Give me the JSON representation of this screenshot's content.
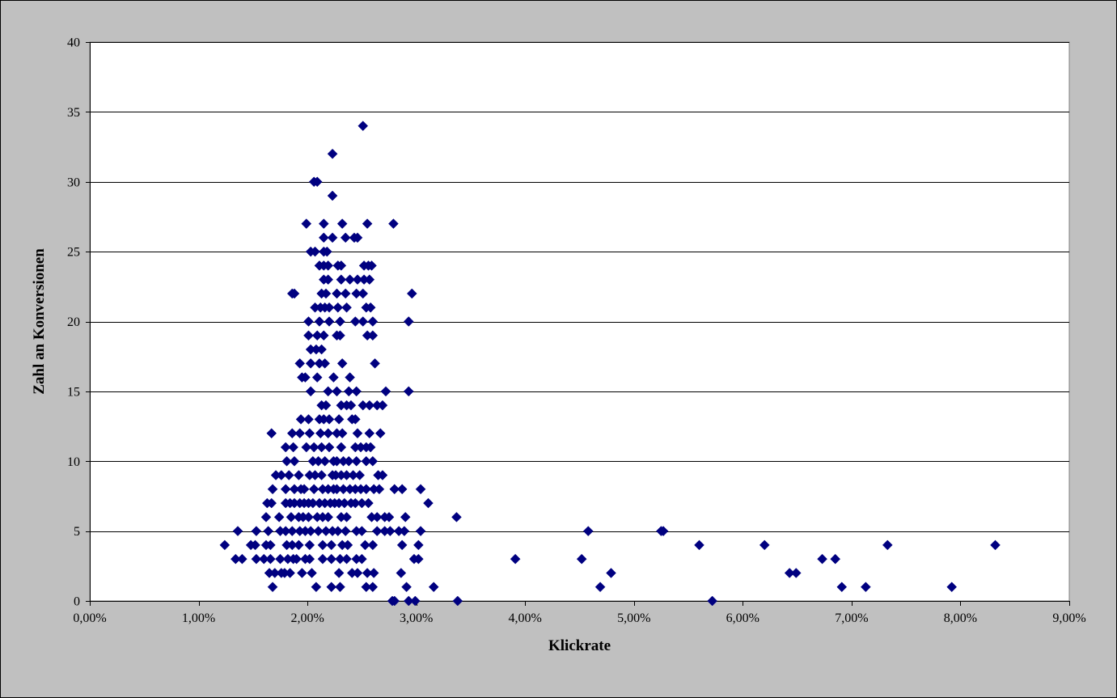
{
  "colors": {
    "chart_area_background": "#c0c0c0",
    "plot_area_background": "#ffffff",
    "gridline": "#000000",
    "marker": "#000080"
  },
  "chart_data": {
    "type": "scatter",
    "title": "",
    "xlabel": "Klickrate",
    "ylabel": "Zahl an Konversionen",
    "xlim": [
      0,
      0.09
    ],
    "ylim": [
      0,
      40
    ],
    "x_ticks": [
      0,
      0.01,
      0.02,
      0.03,
      0.04,
      0.05,
      0.06,
      0.07,
      0.08,
      0.09
    ],
    "x_tick_labels": [
      "0,00%",
      "1,00%",
      "2,00%",
      "3,00%",
      "4,00%",
      "5,00%",
      "6,00%",
      "7,00%",
      "8,00%",
      "9,00%"
    ],
    "y_ticks": [
      0,
      5,
      10,
      15,
      20,
      25,
      30,
      35,
      40
    ],
    "y_tick_labels": [
      "0",
      "5",
      "10",
      "15",
      "20",
      "25",
      "30",
      "35",
      "40"
    ],
    "grid": "horizontal-major",
    "legend": "none",
    "marker": "diamond",
    "series": [
      {
        "points": [
          [
            0.0251,
            34
          ],
          [
            0.0223,
            32
          ],
          [
            0.0209,
            30
          ],
          [
            0.0206,
            30
          ],
          [
            0.0223,
            29
          ],
          [
            0.0199,
            27
          ],
          [
            0.0215,
            27
          ],
          [
            0.0232,
            27
          ],
          [
            0.0255,
            27
          ],
          [
            0.0279,
            27
          ],
          [
            0.0215,
            26
          ],
          [
            0.0223,
            26
          ],
          [
            0.0235,
            26
          ],
          [
            0.0243,
            26
          ],
          [
            0.0246,
            26
          ],
          [
            0.0203,
            25
          ],
          [
            0.0207,
            25
          ],
          [
            0.0215,
            25
          ],
          [
            0.0218,
            25
          ],
          [
            0.0211,
            24
          ],
          [
            0.0215,
            24
          ],
          [
            0.0219,
            24
          ],
          [
            0.0228,
            24
          ],
          [
            0.0231,
            24
          ],
          [
            0.0252,
            24
          ],
          [
            0.0256,
            24
          ],
          [
            0.0259,
            24
          ],
          [
            0.0215,
            23
          ],
          [
            0.0219,
            23
          ],
          [
            0.0231,
            23
          ],
          [
            0.0239,
            23
          ],
          [
            0.0246,
            23
          ],
          [
            0.0252,
            23
          ],
          [
            0.0257,
            23
          ],
          [
            0.0186,
            22
          ],
          [
            0.0188,
            22
          ],
          [
            0.0213,
            22
          ],
          [
            0.0217,
            22
          ],
          [
            0.0227,
            22
          ],
          [
            0.0235,
            22
          ],
          [
            0.0245,
            22
          ],
          [
            0.0251,
            22
          ],
          [
            0.0296,
            22
          ],
          [
            0.0207,
            21
          ],
          [
            0.0212,
            21
          ],
          [
            0.0216,
            21
          ],
          [
            0.022,
            21
          ],
          [
            0.0228,
            21
          ],
          [
            0.0236,
            21
          ],
          [
            0.0254,
            21
          ],
          [
            0.0258,
            21
          ],
          [
            0.0201,
            20
          ],
          [
            0.0211,
            20
          ],
          [
            0.022,
            20
          ],
          [
            0.023,
            20
          ],
          [
            0.0244,
            20
          ],
          [
            0.0251,
            20
          ],
          [
            0.026,
            20
          ],
          [
            0.0293,
            20
          ],
          [
            0.0201,
            19
          ],
          [
            0.0209,
            19
          ],
          [
            0.0215,
            19
          ],
          [
            0.0227,
            19
          ],
          [
            0.023,
            19
          ],
          [
            0.0255,
            19
          ],
          [
            0.026,
            19
          ],
          [
            0.0203,
            18
          ],
          [
            0.0208,
            18
          ],
          [
            0.0213,
            18
          ],
          [
            0.0193,
            17
          ],
          [
            0.0203,
            17
          ],
          [
            0.0211,
            17
          ],
          [
            0.0216,
            17
          ],
          [
            0.0232,
            17
          ],
          [
            0.0262,
            17
          ],
          [
            0.0195,
            16
          ],
          [
            0.0198,
            16
          ],
          [
            0.0209,
            16
          ],
          [
            0.0224,
            16
          ],
          [
            0.0239,
            16
          ],
          [
            0.0203,
            15
          ],
          [
            0.0219,
            15
          ],
          [
            0.0227,
            15
          ],
          [
            0.0238,
            15
          ],
          [
            0.0245,
            15
          ],
          [
            0.0272,
            15
          ],
          [
            0.0293,
            15
          ],
          [
            0.0213,
            14
          ],
          [
            0.0217,
            14
          ],
          [
            0.0231,
            14
          ],
          [
            0.0236,
            14
          ],
          [
            0.024,
            14
          ],
          [
            0.0251,
            14
          ],
          [
            0.0257,
            14
          ],
          [
            0.0264,
            14
          ],
          [
            0.0269,
            14
          ],
          [
            0.0194,
            13
          ],
          [
            0.0201,
            13
          ],
          [
            0.0211,
            13
          ],
          [
            0.0215,
            13
          ],
          [
            0.022,
            13
          ],
          [
            0.0229,
            13
          ],
          [
            0.0241,
            13
          ],
          [
            0.0244,
            13
          ],
          [
            0.0167,
            12
          ],
          [
            0.0186,
            12
          ],
          [
            0.0193,
            12
          ],
          [
            0.0202,
            12
          ],
          [
            0.0212,
            12
          ],
          [
            0.0219,
            12
          ],
          [
            0.0227,
            12
          ],
          [
            0.0232,
            12
          ],
          [
            0.0246,
            12
          ],
          [
            0.0257,
            12
          ],
          [
            0.0267,
            12
          ],
          [
            0.018,
            11
          ],
          [
            0.0187,
            11
          ],
          [
            0.0199,
            11
          ],
          [
            0.0206,
            11
          ],
          [
            0.0213,
            11
          ],
          [
            0.022,
            11
          ],
          [
            0.0231,
            11
          ],
          [
            0.0244,
            11
          ],
          [
            0.0249,
            11
          ],
          [
            0.0254,
            11
          ],
          [
            0.0258,
            11
          ],
          [
            0.0181,
            10
          ],
          [
            0.0188,
            10
          ],
          [
            0.0205,
            10
          ],
          [
            0.021,
            10
          ],
          [
            0.0216,
            10
          ],
          [
            0.0224,
            10
          ],
          [
            0.0227,
            10
          ],
          [
            0.0233,
            10
          ],
          [
            0.0238,
            10
          ],
          [
            0.0245,
            10
          ],
          [
            0.0254,
            10
          ],
          [
            0.026,
            10
          ],
          [
            0.0171,
            9
          ],
          [
            0.0176,
            9
          ],
          [
            0.0183,
            9
          ],
          [
            0.0192,
            9
          ],
          [
            0.0202,
            9
          ],
          [
            0.0207,
            9
          ],
          [
            0.0213,
            9
          ],
          [
            0.0223,
            9
          ],
          [
            0.0226,
            9
          ],
          [
            0.0231,
            9
          ],
          [
            0.0236,
            9
          ],
          [
            0.0242,
            9
          ],
          [
            0.0248,
            9
          ],
          [
            0.0265,
            9
          ],
          [
            0.0269,
            9
          ],
          [
            0.0168,
            8
          ],
          [
            0.018,
            8
          ],
          [
            0.0188,
            8
          ],
          [
            0.0194,
            8
          ],
          [
            0.0197,
            8
          ],
          [
            0.0206,
            8
          ],
          [
            0.0214,
            8
          ],
          [
            0.0219,
            8
          ],
          [
            0.0224,
            8
          ],
          [
            0.0227,
            8
          ],
          [
            0.0233,
            8
          ],
          [
            0.0239,
            8
          ],
          [
            0.0244,
            8
          ],
          [
            0.0249,
            8
          ],
          [
            0.0254,
            8
          ],
          [
            0.0261,
            8
          ],
          [
            0.0266,
            8
          ],
          [
            0.028,
            8
          ],
          [
            0.0287,
            8
          ],
          [
            0.0304,
            8
          ],
          [
            0.0163,
            7
          ],
          [
            0.0167,
            7
          ],
          [
            0.018,
            7
          ],
          [
            0.0184,
            7
          ],
          [
            0.0188,
            7
          ],
          [
            0.0193,
            7
          ],
          [
            0.0197,
            7
          ],
          [
            0.0201,
            7
          ],
          [
            0.0205,
            7
          ],
          [
            0.0211,
            7
          ],
          [
            0.0216,
            7
          ],
          [
            0.0221,
            7
          ],
          [
            0.0225,
            7
          ],
          [
            0.0229,
            7
          ],
          [
            0.0234,
            7
          ],
          [
            0.024,
            7
          ],
          [
            0.0244,
            7
          ],
          [
            0.025,
            7
          ],
          [
            0.0256,
            7
          ],
          [
            0.0311,
            7
          ],
          [
            0.0162,
            6
          ],
          [
            0.0174,
            6
          ],
          [
            0.0185,
            6
          ],
          [
            0.0192,
            6
          ],
          [
            0.0196,
            6
          ],
          [
            0.0201,
            6
          ],
          [
            0.0209,
            6
          ],
          [
            0.0214,
            6
          ],
          [
            0.0219,
            6
          ],
          [
            0.0231,
            6
          ],
          [
            0.0236,
            6
          ],
          [
            0.0259,
            6
          ],
          [
            0.0264,
            6
          ],
          [
            0.0271,
            6
          ],
          [
            0.0275,
            6
          ],
          [
            0.029,
            6
          ],
          [
            0.0337,
            6
          ],
          [
            0.0136,
            5
          ],
          [
            0.0153,
            5
          ],
          [
            0.0164,
            5
          ],
          [
            0.0175,
            5
          ],
          [
            0.018,
            5
          ],
          [
            0.0186,
            5
          ],
          [
            0.0193,
            5
          ],
          [
            0.0198,
            5
          ],
          [
            0.0203,
            5
          ],
          [
            0.021,
            5
          ],
          [
            0.0217,
            5
          ],
          [
            0.0223,
            5
          ],
          [
            0.0228,
            5
          ],
          [
            0.0235,
            5
          ],
          [
            0.0245,
            5
          ],
          [
            0.025,
            5
          ],
          [
            0.0264,
            5
          ],
          [
            0.0271,
            5
          ],
          [
            0.0276,
            5
          ],
          [
            0.0284,
            5
          ],
          [
            0.0289,
            5
          ],
          [
            0.0304,
            5
          ],
          [
            0.0458,
            5
          ],
          [
            0.0525,
            5
          ],
          [
            0.0527,
            5
          ],
          [
            0.0124,
            4
          ],
          [
            0.0148,
            4
          ],
          [
            0.0152,
            4
          ],
          [
            0.0162,
            4
          ],
          [
            0.0166,
            4
          ],
          [
            0.0181,
            4
          ],
          [
            0.0186,
            4
          ],
          [
            0.0192,
            4
          ],
          [
            0.0202,
            4
          ],
          [
            0.0214,
            4
          ],
          [
            0.0222,
            4
          ],
          [
            0.0232,
            4
          ],
          [
            0.0237,
            4
          ],
          [
            0.0253,
            4
          ],
          [
            0.026,
            4
          ],
          [
            0.0287,
            4
          ],
          [
            0.0302,
            4
          ],
          [
            0.056,
            4
          ],
          [
            0.062,
            4
          ],
          [
            0.0733,
            4
          ],
          [
            0.0832,
            4
          ],
          [
            0.0134,
            3
          ],
          [
            0.014,
            3
          ],
          [
            0.0153,
            3
          ],
          [
            0.016,
            3
          ],
          [
            0.0166,
            3
          ],
          [
            0.0175,
            3
          ],
          [
            0.0182,
            3
          ],
          [
            0.0187,
            3
          ],
          [
            0.019,
            3
          ],
          [
            0.0198,
            3
          ],
          [
            0.0202,
            3
          ],
          [
            0.0214,
            3
          ],
          [
            0.0222,
            3
          ],
          [
            0.023,
            3
          ],
          [
            0.0236,
            3
          ],
          [
            0.0245,
            3
          ],
          [
            0.025,
            3
          ],
          [
            0.0298,
            3
          ],
          [
            0.0302,
            3
          ],
          [
            0.0391,
            3
          ],
          [
            0.0452,
            3
          ],
          [
            0.0673,
            3
          ],
          [
            0.0685,
            3
          ],
          [
            0.0165,
            2
          ],
          [
            0.017,
            2
          ],
          [
            0.0176,
            2
          ],
          [
            0.0179,
            2
          ],
          [
            0.0184,
            2
          ],
          [
            0.0195,
            2
          ],
          [
            0.0204,
            2
          ],
          [
            0.0229,
            2
          ],
          [
            0.0241,
            2
          ],
          [
            0.0246,
            2
          ],
          [
            0.0255,
            2
          ],
          [
            0.0261,
            2
          ],
          [
            0.0286,
            2
          ],
          [
            0.0479,
            2
          ],
          [
            0.0643,
            2
          ],
          [
            0.0649,
            2
          ],
          [
            0.0168,
            1
          ],
          [
            0.0208,
            1
          ],
          [
            0.0222,
            1
          ],
          [
            0.023,
            1
          ],
          [
            0.0254,
            1
          ],
          [
            0.026,
            1
          ],
          [
            0.0291,
            1
          ],
          [
            0.0316,
            1
          ],
          [
            0.0469,
            1
          ],
          [
            0.0691,
            1
          ],
          [
            0.0713,
            1
          ],
          [
            0.0792,
            1
          ],
          [
            0.0278,
            0
          ],
          [
            0.028,
            0
          ],
          [
            0.0293,
            0
          ],
          [
            0.0299,
            0
          ],
          [
            0.0338,
            0
          ],
          [
            0.0572,
            0
          ]
        ]
      }
    ]
  }
}
